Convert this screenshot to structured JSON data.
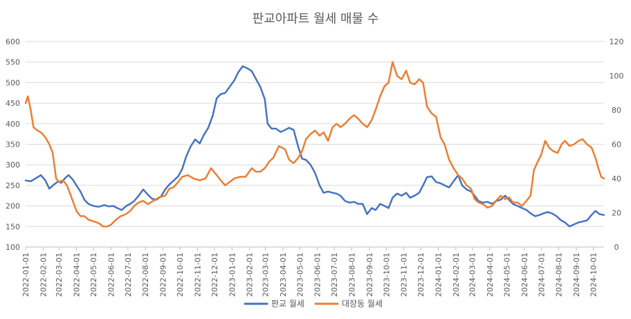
{
  "chart_data": {
    "type": "line",
    "title": "판교아파트 월세 매물 수",
    "x_range": [
      "2022-01-01",
      "2024-10-20"
    ],
    "x_ticks": [
      "2022-01-01",
      "2022-02-01",
      "2022-03-01",
      "2022-04-01",
      "2022-05-01",
      "2022-06-01",
      "2022-07-01",
      "2022-08-01",
      "2022-09-01",
      "2022-10-01",
      "2022-11-01",
      "2022-12-01",
      "2023-01-01",
      "2023-02-01",
      "2023-03-01",
      "2023-04-01",
      "2023-05-01",
      "2023-06-01",
      "2023-07-01",
      "2023-08-01",
      "2023-09-01",
      "2023-10-01",
      "2023-11-01",
      "2023-12-01",
      "2024-01-01",
      "2024-02-01",
      "2024-03-01",
      "2024-04-01",
      "2024-05-01",
      "2024-06-01",
      "2024-07-01",
      "2024-08-01",
      "2024-09-01",
      "2024-10-01"
    ],
    "y_left": {
      "range": [
        100,
        600
      ],
      "ticks": [
        "100",
        "150",
        "200",
        "250",
        "300",
        "350",
        "400",
        "450",
        "500",
        "550",
        "600"
      ]
    },
    "y_right": {
      "range": [
        0,
        120
      ],
      "ticks": [
        "0",
        "20",
        "40",
        "60",
        "80",
        "100",
        "120"
      ]
    },
    "grid": true,
    "legend_position": "bottom",
    "series": [
      {
        "name": "판교 월세",
        "axis": "left",
        "color": "#4472C4",
        "points": [
          [
            "2022-01-01",
            262
          ],
          [
            "2022-01-10",
            260
          ],
          [
            "2022-01-20",
            268
          ],
          [
            "2022-01-28",
            275
          ],
          [
            "2022-02-05",
            262
          ],
          [
            "2022-02-12",
            242
          ],
          [
            "2022-02-20",
            252
          ],
          [
            "2022-02-28",
            260
          ],
          [
            "2022-03-05",
            256
          ],
          [
            "2022-03-12",
            268
          ],
          [
            "2022-03-18",
            275
          ],
          [
            "2022-03-25",
            265
          ],
          [
            "2022-04-01",
            250
          ],
          [
            "2022-04-08",
            235
          ],
          [
            "2022-04-15",
            215
          ],
          [
            "2022-04-22",
            205
          ],
          [
            "2022-05-01",
            200
          ],
          [
            "2022-05-10",
            198
          ],
          [
            "2022-05-20",
            202
          ],
          [
            "2022-05-28",
            199
          ],
          [
            "2022-06-05",
            200
          ],
          [
            "2022-06-12",
            195
          ],
          [
            "2022-06-20",
            190
          ],
          [
            "2022-06-28",
            200
          ],
          [
            "2022-07-05",
            205
          ],
          [
            "2022-07-12",
            212
          ],
          [
            "2022-07-20",
            225
          ],
          [
            "2022-07-28",
            240
          ],
          [
            "2022-08-05",
            228
          ],
          [
            "2022-08-12",
            218
          ],
          [
            "2022-08-20",
            215
          ],
          [
            "2022-08-28",
            222
          ],
          [
            "2022-09-05",
            240
          ],
          [
            "2022-09-12",
            252
          ],
          [
            "2022-09-20",
            262
          ],
          [
            "2022-09-28",
            272
          ],
          [
            "2022-10-05",
            290
          ],
          [
            "2022-10-12",
            320
          ],
          [
            "2022-10-20",
            345
          ],
          [
            "2022-10-28",
            362
          ],
          [
            "2022-11-05",
            352
          ],
          [
            "2022-11-12",
            372
          ],
          [
            "2022-11-20",
            390
          ],
          [
            "2022-11-28",
            420
          ],
          [
            "2022-12-05",
            462
          ],
          [
            "2022-12-12",
            472
          ],
          [
            "2022-12-20",
            475
          ],
          [
            "2022-12-28",
            490
          ],
          [
            "2023-01-05",
            505
          ],
          [
            "2023-01-12",
            525
          ],
          [
            "2023-01-20",
            540
          ],
          [
            "2023-01-28",
            535
          ],
          [
            "2023-02-05",
            528
          ],
          [
            "2023-02-12",
            510
          ],
          [
            "2023-02-20",
            490
          ],
          [
            "2023-02-28",
            460
          ],
          [
            "2023-03-05",
            400
          ],
          [
            "2023-03-12",
            388
          ],
          [
            "2023-03-20",
            388
          ],
          [
            "2023-03-28",
            380
          ],
          [
            "2023-04-05",
            385
          ],
          [
            "2023-04-12",
            390
          ],
          [
            "2023-04-20",
            385
          ],
          [
            "2023-04-28",
            345
          ],
          [
            "2023-05-05",
            315
          ],
          [
            "2023-05-12",
            312
          ],
          [
            "2023-05-20",
            300
          ],
          [
            "2023-05-28",
            280
          ],
          [
            "2023-06-05",
            250
          ],
          [
            "2023-06-12",
            232
          ],
          [
            "2023-06-20",
            235
          ],
          [
            "2023-06-28",
            232
          ],
          [
            "2023-07-05",
            230
          ],
          [
            "2023-07-12",
            225
          ],
          [
            "2023-07-20",
            212
          ],
          [
            "2023-07-28",
            208
          ],
          [
            "2023-08-05",
            210
          ],
          [
            "2023-08-12",
            205
          ],
          [
            "2023-08-20",
            205
          ],
          [
            "2023-08-28",
            180
          ],
          [
            "2023-09-05",
            195
          ],
          [
            "2023-09-12",
            190
          ],
          [
            "2023-09-20",
            205
          ],
          [
            "2023-09-28",
            200
          ],
          [
            "2023-10-05",
            195
          ],
          [
            "2023-10-12",
            220
          ],
          [
            "2023-10-20",
            230
          ],
          [
            "2023-10-28",
            225
          ],
          [
            "2023-11-05",
            232
          ],
          [
            "2023-11-12",
            220
          ],
          [
            "2023-11-20",
            225
          ],
          [
            "2023-11-28",
            232
          ],
          [
            "2023-12-05",
            250
          ],
          [
            "2023-12-12",
            270
          ],
          [
            "2023-12-20",
            272
          ],
          [
            "2023-12-28",
            258
          ],
          [
            "2024-01-05",
            255
          ],
          [
            "2024-01-12",
            250
          ],
          [
            "2024-01-20",
            245
          ],
          [
            "2024-01-28",
            260
          ],
          [
            "2024-02-05",
            275
          ],
          [
            "2024-02-12",
            250
          ],
          [
            "2024-02-20",
            240
          ],
          [
            "2024-02-28",
            235
          ],
          [
            "2024-03-05",
            225
          ],
          [
            "2024-03-12",
            212
          ],
          [
            "2024-03-20",
            208
          ],
          [
            "2024-03-28",
            210
          ],
          [
            "2024-04-05",
            205
          ],
          [
            "2024-04-12",
            212
          ],
          [
            "2024-04-20",
            215
          ],
          [
            "2024-04-28",
            225
          ],
          [
            "2024-05-05",
            215
          ],
          [
            "2024-05-12",
            205
          ],
          [
            "2024-05-20",
            200
          ],
          [
            "2024-05-28",
            195
          ],
          [
            "2024-06-05",
            190
          ],
          [
            "2024-06-12",
            182
          ],
          [
            "2024-06-20",
            175
          ],
          [
            "2024-06-28",
            178
          ],
          [
            "2024-07-05",
            182
          ],
          [
            "2024-07-12",
            185
          ],
          [
            "2024-07-20",
            182
          ],
          [
            "2024-07-28",
            175
          ],
          [
            "2024-08-05",
            165
          ],
          [
            "2024-08-12",
            160
          ],
          [
            "2024-08-20",
            150
          ],
          [
            "2024-08-28",
            155
          ],
          [
            "2024-09-05",
            160
          ],
          [
            "2024-09-12",
            162
          ],
          [
            "2024-09-20",
            165
          ],
          [
            "2024-09-28",
            178
          ],
          [
            "2024-10-05",
            188
          ],
          [
            "2024-10-12",
            180
          ],
          [
            "2024-10-20",
            178
          ]
        ]
      },
      {
        "name": "대장동 월세",
        "axis": "right",
        "color": "#ED7D31",
        "points": [
          [
            "2022-01-01",
            84
          ],
          [
            "2022-01-05",
            88
          ],
          [
            "2022-01-10",
            80
          ],
          [
            "2022-01-15",
            70
          ],
          [
            "2022-01-22",
            68
          ],
          [
            "2022-01-28",
            67
          ],
          [
            "2022-02-05",
            64
          ],
          [
            "2022-02-12",
            60
          ],
          [
            "2022-02-18",
            55
          ],
          [
            "2022-02-24",
            40
          ],
          [
            "2022-03-01",
            38
          ],
          [
            "2022-03-08",
            39
          ],
          [
            "2022-03-15",
            36
          ],
          [
            "2022-03-22",
            30
          ],
          [
            "2022-04-01",
            21
          ],
          [
            "2022-04-08",
            18
          ],
          [
            "2022-04-15",
            18
          ],
          [
            "2022-04-22",
            16
          ],
          [
            "2022-05-01",
            15
          ],
          [
            "2022-05-10",
            14
          ],
          [
            "2022-05-18",
            12
          ],
          [
            "2022-05-25",
            12
          ],
          [
            "2022-06-01",
            13
          ],
          [
            "2022-06-10",
            16
          ],
          [
            "2022-06-18",
            18
          ],
          [
            "2022-06-26",
            19
          ],
          [
            "2022-07-05",
            21
          ],
          [
            "2022-07-12",
            24
          ],
          [
            "2022-07-20",
            26
          ],
          [
            "2022-07-28",
            27
          ],
          [
            "2022-08-05",
            25
          ],
          [
            "2022-08-15",
            27
          ],
          [
            "2022-08-25",
            29
          ],
          [
            "2022-09-05",
            30
          ],
          [
            "2022-09-12",
            34
          ],
          [
            "2022-09-20",
            35
          ],
          [
            "2022-09-28",
            38
          ],
          [
            "2022-10-05",
            41
          ],
          [
            "2022-10-15",
            42
          ],
          [
            "2022-10-25",
            40
          ],
          [
            "2022-11-05",
            39
          ],
          [
            "2022-11-15",
            40
          ],
          [
            "2022-11-25",
            46
          ],
          [
            "2022-12-05",
            42
          ],
          [
            "2022-12-12",
            39
          ],
          [
            "2022-12-20",
            36
          ],
          [
            "2022-12-28",
            38
          ],
          [
            "2023-01-05",
            40
          ],
          [
            "2023-01-15",
            41
          ],
          [
            "2023-01-25",
            41
          ],
          [
            "2023-02-05",
            46
          ],
          [
            "2023-02-12",
            44
          ],
          [
            "2023-02-20",
            44
          ],
          [
            "2023-02-28",
            46
          ],
          [
            "2023-03-08",
            50
          ],
          [
            "2023-03-15",
            52
          ],
          [
            "2023-03-25",
            59
          ],
          [
            "2023-04-05",
            57
          ],
          [
            "2023-04-12",
            51
          ],
          [
            "2023-04-20",
            49
          ],
          [
            "2023-04-28",
            52
          ],
          [
            "2023-05-05",
            56
          ],
          [
            "2023-05-12",
            63
          ],
          [
            "2023-05-20",
            66
          ],
          [
            "2023-05-28",
            68
          ],
          [
            "2023-06-05",
            65
          ],
          [
            "2023-06-12",
            67
          ],
          [
            "2023-06-20",
            62
          ],
          [
            "2023-06-28",
            70
          ],
          [
            "2023-07-05",
            72
          ],
          [
            "2023-07-12",
            70
          ],
          [
            "2023-07-20",
            72
          ],
          [
            "2023-07-28",
            75
          ],
          [
            "2023-08-05",
            77
          ],
          [
            "2023-08-12",
            75
          ],
          [
            "2023-08-20",
            72
          ],
          [
            "2023-08-28",
            70
          ],
          [
            "2023-09-05",
            74
          ],
          [
            "2023-09-12",
            80
          ],
          [
            "2023-09-20",
            88
          ],
          [
            "2023-09-28",
            94
          ],
          [
            "2023-10-05",
            96
          ],
          [
            "2023-10-12",
            108
          ],
          [
            "2023-10-20",
            100
          ],
          [
            "2023-10-28",
            98
          ],
          [
            "2023-11-05",
            103
          ],
          [
            "2023-11-12",
            96
          ],
          [
            "2023-11-20",
            95
          ],
          [
            "2023-11-28",
            98
          ],
          [
            "2023-12-05",
            96
          ],
          [
            "2023-12-12",
            82
          ],
          [
            "2023-12-20",
            78
          ],
          [
            "2023-12-28",
            76
          ],
          [
            "2024-01-05",
            64
          ],
          [
            "2024-01-12",
            60
          ],
          [
            "2024-01-20",
            51
          ],
          [
            "2024-01-28",
            46
          ],
          [
            "2024-02-05",
            42
          ],
          [
            "2024-02-12",
            40
          ],
          [
            "2024-02-20",
            36
          ],
          [
            "2024-02-28",
            34
          ],
          [
            "2024-03-05",
            28
          ],
          [
            "2024-03-12",
            26
          ],
          [
            "2024-03-20",
            25
          ],
          [
            "2024-03-28",
            23
          ],
          [
            "2024-04-05",
            24
          ],
          [
            "2024-04-12",
            27
          ],
          [
            "2024-04-20",
            30
          ],
          [
            "2024-04-28",
            28
          ],
          [
            "2024-05-05",
            29
          ],
          [
            "2024-05-12",
            26
          ],
          [
            "2024-05-20",
            26
          ],
          [
            "2024-05-28",
            24
          ],
          [
            "2024-06-05",
            27
          ],
          [
            "2024-06-12",
            30
          ],
          [
            "2024-06-18",
            45
          ],
          [
            "2024-06-25",
            50
          ],
          [
            "2024-07-01",
            54
          ],
          [
            "2024-07-08",
            62
          ],
          [
            "2024-07-15",
            58
          ],
          [
            "2024-07-22",
            56
          ],
          [
            "2024-07-30",
            55
          ],
          [
            "2024-08-06",
            60
          ],
          [
            "2024-08-12",
            62
          ],
          [
            "2024-08-20",
            59
          ],
          [
            "2024-08-28",
            60
          ],
          [
            "2024-09-05",
            62
          ],
          [
            "2024-09-12",
            63
          ],
          [
            "2024-09-20",
            60
          ],
          [
            "2024-09-28",
            58
          ],
          [
            "2024-10-05",
            52
          ],
          [
            "2024-10-10",
            46
          ],
          [
            "2024-10-15",
            41
          ],
          [
            "2024-10-20",
            40
          ]
        ]
      }
    ]
  }
}
